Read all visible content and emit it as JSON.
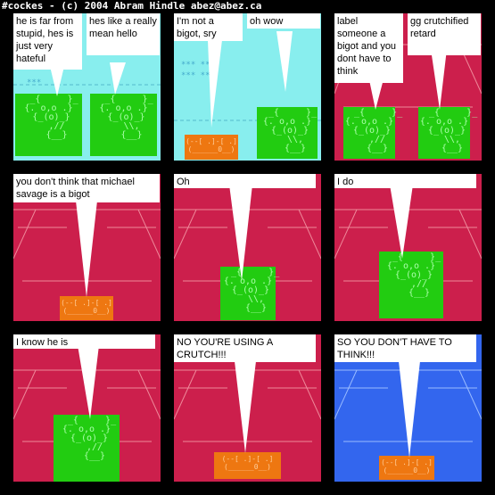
{
  "header": {
    "title": "#cockes - (c) 2004 Abram Hindle abez@abez.ca"
  },
  "colors": {
    "crimson": "#cc1f4c",
    "cyan": "#88eeee",
    "blue": "#3366ee",
    "green": "#22cc11",
    "orange": "#ee7711"
  },
  "panels": [
    {
      "bubbles": [
        "he is far from stupid, hes is just very hateful",
        "hes like a really mean hello"
      ]
    },
    {
      "bubbles": [
        "I'm not a bigot, sry",
        "oh wow"
      ]
    },
    {
      "bubbles": [
        "label someone a bigot and you dont have to think",
        "gg crutchified retard"
      ]
    },
    {
      "bubbles": [
        "you don't think that michael savage is a bigot"
      ]
    },
    {
      "bubbles": [
        "Oh"
      ]
    },
    {
      "bubbles": [
        "I do"
      ]
    },
    {
      "bubbles": [
        "I know he is"
      ]
    },
    {
      "bubbles": [
        "NO YOU'RE USING A CRUTCH!!!"
      ]
    },
    {
      "bubbles": [
        "SO YOU DON'T HAVE TO THINK!!!"
      ]
    }
  ],
  "ascii": {
    "face": "  _{     }_\n{. o,o .}\n {_(o)_}\n   ,//\n   {__}",
    "face_left": "  _{     }_\n{. o,o .}\n {_(o)_}\n   ,//\n   {__}",
    "face_right": "  _{     }_\n{. o,o .}\n {_(o)_}\n   \\\\,\n   {__}",
    "box": "(--[ .]-[ .]\n(______0__)"
  }
}
